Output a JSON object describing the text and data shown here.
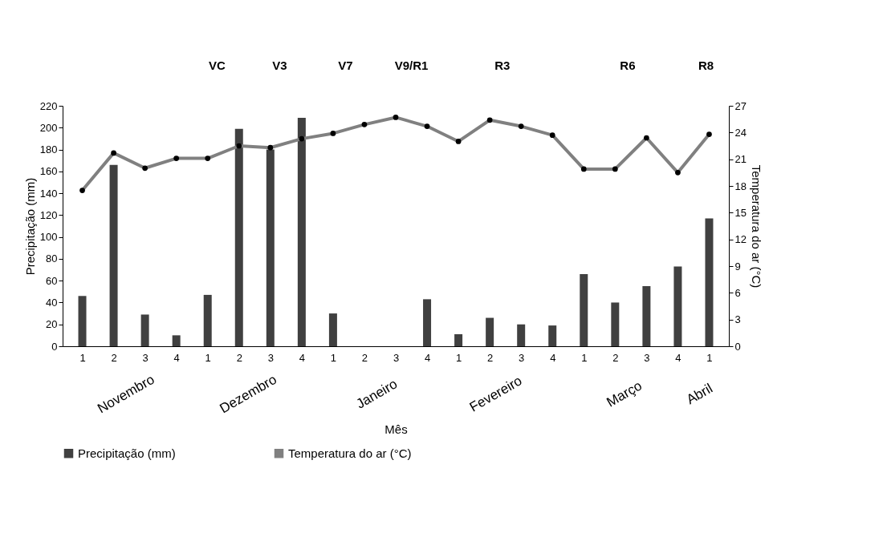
{
  "chart_data": {
    "type": "bar",
    "categories": [
      "1",
      "2",
      "3",
      "4",
      "1",
      "2",
      "3",
      "4",
      "1",
      "2",
      "3",
      "4",
      "1",
      "2",
      "3",
      "4",
      "1",
      "2",
      "3",
      "4",
      "1"
    ],
    "series": [
      {
        "name": "Precipitação (mm)",
        "color": "#404040",
        "values": [
          46,
          166,
          29,
          10,
          47,
          199,
          180,
          209,
          30,
          0,
          0,
          43,
          11,
          26,
          20,
          19,
          66,
          40,
          55,
          73,
          117
        ]
      },
      {
        "name": "Temperatura do ar (°C)",
        "type": "line",
        "axis": "y2",
        "color": "#808080",
        "values": [
          17.5,
          21.7,
          20.0,
          21.1,
          21.1,
          22.5,
          22.3,
          23.3,
          23.9,
          24.9,
          25.7,
          24.7,
          23.0,
          25.4,
          24.7,
          23.7,
          19.9,
          19.9,
          23.4,
          19.5,
          23.8
        ]
      }
    ],
    "xlabel": "Mês",
    "ylabel": "Precipitação (mm)",
    "y2label": "Temperatura do ar (°C)",
    "ylim": [
      0,
      220
    ],
    "yticks": [
      0,
      20,
      40,
      60,
      80,
      100,
      120,
      140,
      160,
      180,
      200,
      220
    ],
    "y2lim": [
      0,
      27
    ],
    "y2ticks": [
      0,
      3,
      6,
      9,
      12,
      15,
      18,
      21,
      24,
      27
    ],
    "marker": "circle",
    "grid": false,
    "legend": "bottom",
    "annotations": [
      "VC",
      "V3",
      "V7",
      "V9/R1",
      "R3",
      "R6",
      "R8",
      "Novembro",
      "Dezembro",
      "Janeiro",
      "Fevereiro",
      "Março",
      "Abril"
    ]
  }
}
